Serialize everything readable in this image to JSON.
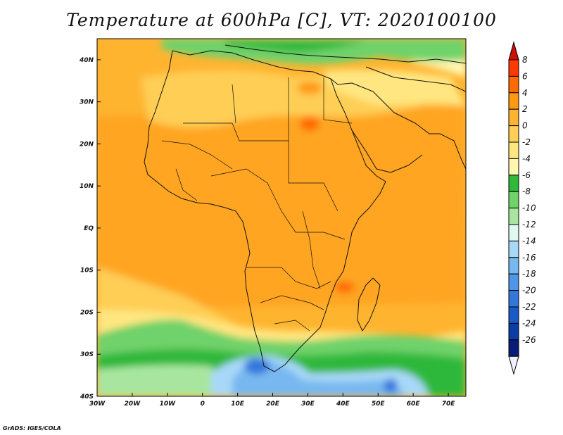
{
  "title": "Temperature at 600hPa [C], VT: 2020100100",
  "credit": "GrADS: IGES/COLA",
  "map": {
    "lon_range": [
      -30,
      75
    ],
    "lat_range": [
      -40,
      45
    ],
    "x_ticks": [
      {
        "lon": -30,
        "label": "30W"
      },
      {
        "lon": -20,
        "label": "20W"
      },
      {
        "lon": -10,
        "label": "10W"
      },
      {
        "lon": 0,
        "label": "0"
      },
      {
        "lon": 10,
        "label": "10E"
      },
      {
        "lon": 20,
        "label": "20E"
      },
      {
        "lon": 30,
        "label": "30E"
      },
      {
        "lon": 40,
        "label": "40E"
      },
      {
        "lon": 50,
        "label": "50E"
      },
      {
        "lon": 60,
        "label": "60E"
      },
      {
        "lon": 70,
        "label": "70E"
      }
    ],
    "y_ticks": [
      {
        "lat": 40,
        "label": "40N"
      },
      {
        "lat": 30,
        "label": "30N"
      },
      {
        "lat": 20,
        "label": "20N"
      },
      {
        "lat": 10,
        "label": "10N"
      },
      {
        "lat": 0,
        "label": "EQ"
      },
      {
        "lat": -10,
        "label": "10S"
      },
      {
        "lat": -20,
        "label": "20S"
      },
      {
        "lat": -30,
        "label": "30S"
      },
      {
        "lat": -40,
        "label": "40S"
      }
    ]
  },
  "colorbar": {
    "levels": [
      {
        "label": "8",
        "color": "#ff3a00"
      },
      {
        "label": "6",
        "color": "#ff6a00"
      },
      {
        "label": "4",
        "color": "#ff9a10"
      },
      {
        "label": "2",
        "color": "#ffb430"
      },
      {
        "label": "0",
        "color": "#ffce55"
      },
      {
        "label": "-2",
        "color": "#ffe680"
      },
      {
        "label": "-4",
        "color": "#fff6b0"
      },
      {
        "label": "-6",
        "color": "#2fb83a"
      },
      {
        "label": "-8",
        "color": "#6fd26a"
      },
      {
        "label": "-10",
        "color": "#a8e6a0"
      },
      {
        "label": "-12",
        "color": "#e0f8f0"
      },
      {
        "label": "-14",
        "color": "#a8d8f8"
      },
      {
        "label": "-16",
        "color": "#78b8f0"
      },
      {
        "label": "-18",
        "color": "#5096e8"
      },
      {
        "label": "-20",
        "color": "#3278dc"
      },
      {
        "label": "-22",
        "color": "#1a5ac8"
      },
      {
        "label": "-24",
        "color": "#0a3ca8"
      },
      {
        "label": "-26",
        "color": "#081c78"
      }
    ],
    "top_arrow_color": "#d01000",
    "bottom_arrow_color": "#f0f0ff"
  },
  "colors": {
    "background_warm": "#ffb430",
    "land_orange": "#ffa520",
    "hot_spot": "#ff6a00",
    "pale_yellow": "#ffe680",
    "green_band": "#6fd26a",
    "dark_green": "#2fb83a",
    "cold_blue": "#5096e8",
    "coast": "#111111"
  }
}
